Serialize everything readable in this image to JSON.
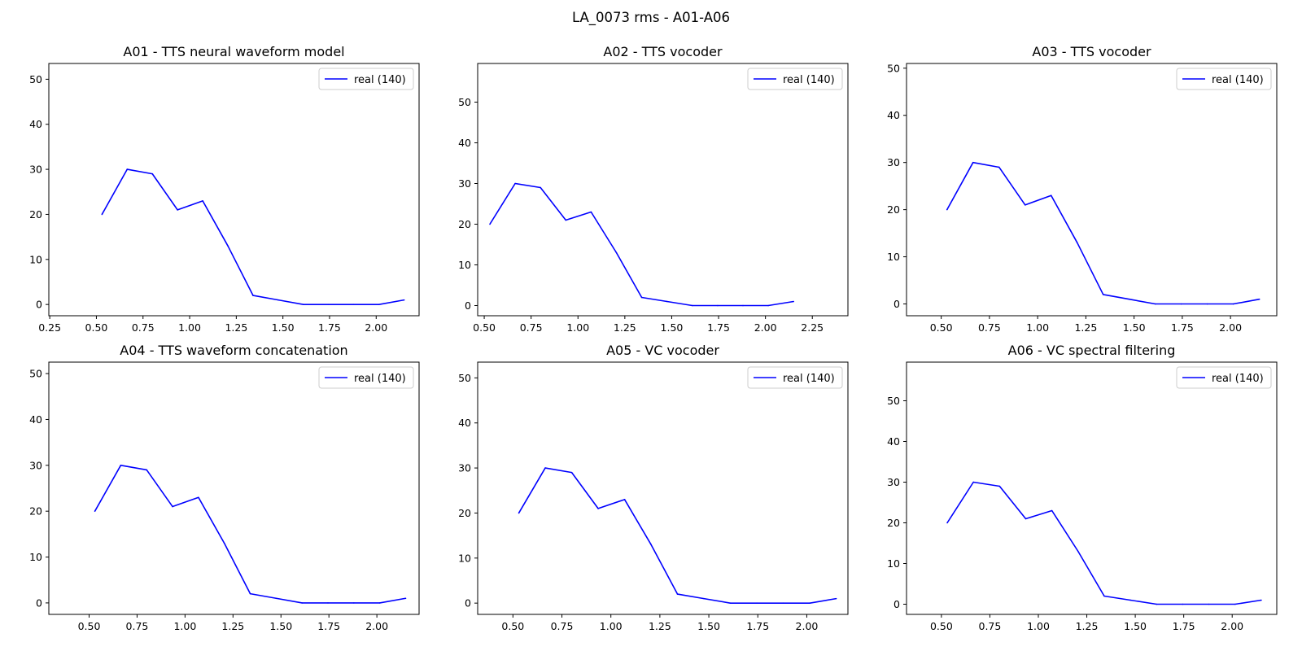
{
  "figure": {
    "title": "LA_0073 rms - A01-A06",
    "colors": {
      "line": "#0000ff",
      "frame": "#000000",
      "background": "#ffffff",
      "legend_border": "#cccccc"
    }
  },
  "chart_data": [
    {
      "type": "line",
      "title": "A01 - TTS neural waveform model",
      "xlabel": "",
      "ylabel": "",
      "xlim": [
        0.245,
        2.23
      ],
      "ylim": [
        -2.5,
        53.5
      ],
      "xticks": [
        0.25,
        0.5,
        0.75,
        1.0,
        1.25,
        1.5,
        1.75,
        2.0
      ],
      "xtick_labels": [
        "0.25",
        "0.50",
        "0.75",
        "1.00",
        "1.25",
        "1.50",
        "1.75",
        "2.00"
      ],
      "yticks": [
        0,
        10,
        20,
        30,
        40,
        50
      ],
      "ytick_labels": [
        "0",
        "10",
        "20",
        "30",
        "40",
        "50"
      ],
      "legend_position": "upper right",
      "series": [
        {
          "name": "real (140)",
          "color": "#0000ff",
          "x": [
            0.53,
            0.665,
            0.8,
            0.935,
            1.07,
            1.205,
            1.34,
            1.475,
            1.61,
            1.745,
            1.88,
            2.015,
            2.15
          ],
          "y": [
            20,
            30,
            29,
            21,
            23,
            13,
            2,
            1,
            0,
            0,
            0,
            0,
            1
          ]
        }
      ]
    },
    {
      "type": "line",
      "title": "A02 - TTS vocoder",
      "xlabel": "",
      "ylabel": "",
      "xlim": [
        0.465,
        2.44
      ],
      "ylim": [
        -2.5,
        59.5
      ],
      "xticks": [
        0.5,
        0.75,
        1.0,
        1.25,
        1.5,
        1.75,
        2.0,
        2.25
      ],
      "xtick_labels": [
        "0.50",
        "0.75",
        "1.00",
        "1.25",
        "1.50",
        "1.75",
        "2.00",
        "2.25"
      ],
      "yticks": [
        0,
        10,
        20,
        30,
        40,
        50
      ],
      "ytick_labels": [
        "0",
        "10",
        "20",
        "30",
        "40",
        "50"
      ],
      "legend_position": "upper right",
      "series": [
        {
          "name": "real (140)",
          "color": "#0000ff",
          "x": [
            0.53,
            0.665,
            0.8,
            0.935,
            1.07,
            1.205,
            1.34,
            1.475,
            1.61,
            1.745,
            1.88,
            2.015,
            2.15
          ],
          "y": [
            20,
            30,
            29,
            21,
            23,
            13,
            2,
            1,
            0,
            0,
            0,
            0,
            1
          ]
        }
      ]
    },
    {
      "type": "line",
      "title": "A03 - TTS vocoder",
      "xlabel": "",
      "ylabel": "",
      "xlim": [
        0.32,
        2.24
      ],
      "ylim": [
        -2.5,
        51.0
      ],
      "xticks": [
        0.5,
        0.75,
        1.0,
        1.25,
        1.5,
        1.75,
        2.0
      ],
      "xtick_labels": [
        "0.50",
        "0.75",
        "1.00",
        "1.25",
        "1.50",
        "1.75",
        "2.00"
      ],
      "yticks": [
        0,
        10,
        20,
        30,
        40,
        50
      ],
      "ytick_labels": [
        "0",
        "10",
        "20",
        "30",
        "40",
        "50"
      ],
      "legend_position": "upper right",
      "series": [
        {
          "name": "real (140)",
          "color": "#0000ff",
          "x": [
            0.53,
            0.665,
            0.8,
            0.935,
            1.07,
            1.205,
            1.34,
            1.475,
            1.61,
            1.745,
            1.88,
            2.015,
            2.15
          ],
          "y": [
            20,
            30,
            29,
            21,
            23,
            13,
            2,
            1,
            0,
            0,
            0,
            0,
            1
          ]
        }
      ]
    },
    {
      "type": "line",
      "title": "A04 - TTS waveform concatenation",
      "xlabel": "",
      "ylabel": "",
      "xlim": [
        0.29,
        2.22
      ],
      "ylim": [
        -2.5,
        52.5
      ],
      "xticks": [
        0.5,
        0.75,
        1.0,
        1.25,
        1.5,
        1.75,
        2.0
      ],
      "xtick_labels": [
        "0.50",
        "0.75",
        "1.00",
        "1.25",
        "1.50",
        "1.75",
        "2.00"
      ],
      "yticks": [
        0,
        10,
        20,
        30,
        40,
        50
      ],
      "ytick_labels": [
        "0",
        "10",
        "20",
        "30",
        "40",
        "50"
      ],
      "legend_position": "upper right",
      "series": [
        {
          "name": "real (140)",
          "color": "#0000ff",
          "x": [
            0.53,
            0.665,
            0.8,
            0.935,
            1.07,
            1.205,
            1.34,
            1.475,
            1.61,
            1.745,
            1.88,
            2.015,
            2.15
          ],
          "y": [
            20,
            30,
            29,
            21,
            23,
            13,
            2,
            1,
            0,
            0,
            0,
            0,
            1
          ]
        }
      ]
    },
    {
      "type": "line",
      "title": "A05 - VC vocoder",
      "xlabel": "",
      "ylabel": "",
      "xlim": [
        0.32,
        2.21
      ],
      "ylim": [
        -2.5,
        53.5
      ],
      "xticks": [
        0.5,
        0.75,
        1.0,
        1.25,
        1.5,
        1.75,
        2.0
      ],
      "xtick_labels": [
        "0.50",
        "0.75",
        "1.00",
        "1.25",
        "1.50",
        "1.75",
        "2.00"
      ],
      "yticks": [
        0,
        10,
        20,
        30,
        40,
        50
      ],
      "ytick_labels": [
        "0",
        "10",
        "20",
        "30",
        "40",
        "50"
      ],
      "legend_position": "upper right",
      "series": [
        {
          "name": "real (140)",
          "color": "#0000ff",
          "x": [
            0.53,
            0.665,
            0.8,
            0.935,
            1.07,
            1.205,
            1.34,
            1.475,
            1.61,
            1.745,
            1.88,
            2.015,
            2.15
          ],
          "y": [
            20,
            30,
            29,
            21,
            23,
            13,
            2,
            1,
            0,
            0,
            0,
            0,
            1
          ]
        }
      ]
    },
    {
      "type": "line",
      "title": "A06 - VC spectral filtering",
      "xlabel": "",
      "ylabel": "",
      "xlim": [
        0.32,
        2.23
      ],
      "ylim": [
        -2.5,
        59.5
      ],
      "xticks": [
        0.5,
        0.75,
        1.0,
        1.25,
        1.5,
        1.75,
        2.0
      ],
      "xtick_labels": [
        "0.50",
        "0.75",
        "1.00",
        "1.25",
        "1.50",
        "1.75",
        "2.00"
      ],
      "yticks": [
        0,
        10,
        20,
        30,
        40,
        50
      ],
      "ytick_labels": [
        "0",
        "10",
        "20",
        "30",
        "40",
        "50"
      ],
      "legend_position": "upper right",
      "series": [
        {
          "name": "real (140)",
          "color": "#0000ff",
          "x": [
            0.53,
            0.665,
            0.8,
            0.935,
            1.07,
            1.205,
            1.34,
            1.475,
            1.61,
            1.745,
            1.88,
            2.015,
            2.15
          ],
          "y": [
            20,
            30,
            29,
            21,
            23,
            13,
            2,
            1,
            0,
            0,
            0,
            0,
            1
          ]
        }
      ]
    }
  ]
}
